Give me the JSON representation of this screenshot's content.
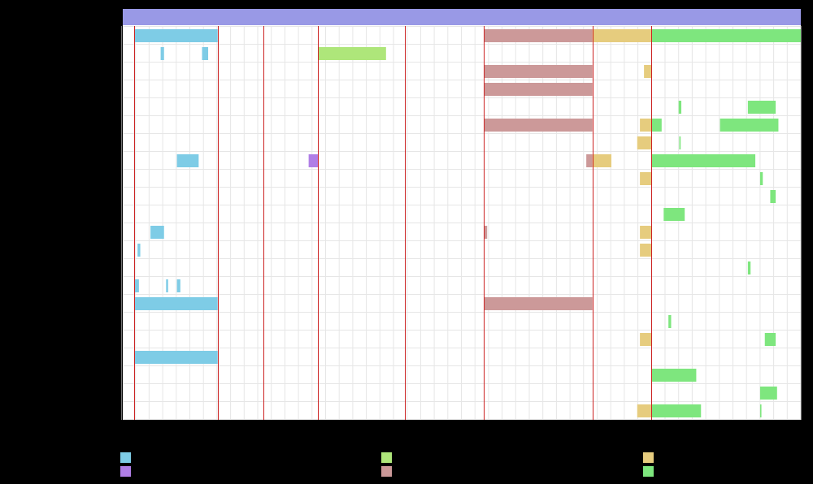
{
  "chart_data": {
    "type": "gantt",
    "title": "",
    "xlabel": "",
    "ylabel": "",
    "x_range": [
      0,
      100
    ],
    "grid": true,
    "legend_position": "bottom",
    "legend": [
      {
        "name": "",
        "color": "#7ecce6"
      },
      {
        "name": "",
        "color": "#aee67a"
      },
      {
        "name": "",
        "color": "#e6cc7e"
      },
      {
        "name": "",
        "color": "#b07ee6"
      },
      {
        "name": "",
        "color": "#cc9999"
      },
      {
        "name": "",
        "color": "#7ee67e"
      }
    ],
    "header_bar": {
      "start": 0,
      "end": 100,
      "color": "#9999e6"
    },
    "milestones": [
      1.8,
      14.1,
      20.8,
      28.9,
      41.7,
      53.3,
      69.3,
      78.0
    ],
    "rows": [
      [
        {
          "s": 1.8,
          "e": 14.1,
          "c": 0
        },
        {
          "s": 53.3,
          "e": 69.3,
          "c": 4
        },
        {
          "s": 69.3,
          "e": 78.0,
          "c": 2
        },
        {
          "s": 78.0,
          "e": 100.0,
          "c": 5
        }
      ],
      [
        {
          "s": 5.7,
          "e": 6.2,
          "c": 0
        },
        {
          "s": 11.8,
          "e": 12.7,
          "c": 0
        },
        {
          "s": 28.9,
          "e": 38.9,
          "c": 1
        }
      ],
      [
        {
          "s": 53.3,
          "e": 69.3,
          "c": 4
        },
        {
          "s": 76.9,
          "e": 78.0,
          "c": 2
        }
      ],
      [
        {
          "s": 53.3,
          "e": 69.3,
          "c": 4
        }
      ],
      [
        {
          "s": 82.0,
          "e": 82.4,
          "c": 5
        },
        {
          "s": 92.2,
          "e": 96.3,
          "c": 5
        }
      ],
      [
        {
          "s": 53.3,
          "e": 69.3,
          "c": 4
        },
        {
          "s": 76.3,
          "e": 78.0,
          "c": 2
        },
        {
          "s": 78.0,
          "e": 79.5,
          "c": 5
        },
        {
          "s": 88.1,
          "e": 96.7,
          "c": 5
        }
      ],
      [
        {
          "s": 75.9,
          "e": 78.0,
          "c": 2
        },
        {
          "s": 82.1,
          "e": 82.3,
          "c": 5
        }
      ],
      [
        {
          "s": 8.1,
          "e": 11.3,
          "c": 0
        },
        {
          "s": 27.5,
          "e": 28.9,
          "c": 3
        },
        {
          "s": 68.4,
          "e": 69.3,
          "c": 4
        },
        {
          "s": 69.3,
          "e": 72.1,
          "c": 2
        },
        {
          "s": 78.0,
          "e": 93.3,
          "c": 5
        }
      ],
      [
        {
          "s": 76.3,
          "e": 78.0,
          "c": 2
        },
        {
          "s": 94.0,
          "e": 94.4,
          "c": 5
        }
      ],
      [
        {
          "s": 95.5,
          "e": 96.3,
          "c": 5
        }
      ],
      [
        {
          "s": 79.8,
          "e": 82.9,
          "c": 5
        }
      ],
      [
        {
          "s": 4.2,
          "e": 6.2,
          "c": 0
        },
        {
          "s": 53.3,
          "e": 53.8,
          "c": 4
        },
        {
          "s": 76.3,
          "e": 78.0,
          "c": 2
        }
      ],
      [
        {
          "s": 2.3,
          "e": 2.7,
          "c": 0
        },
        {
          "s": 76.3,
          "e": 78.0,
          "c": 2
        }
      ],
      [
        {
          "s": 92.2,
          "e": 92.6,
          "c": 5
        }
      ],
      [
        {
          "s": 1.8,
          "e": 2.5,
          "c": 0
        },
        {
          "s": 6.5,
          "e": 6.8,
          "c": 0
        },
        {
          "s": 8.1,
          "e": 8.6,
          "c": 0
        }
      ],
      [
        {
          "s": 1.8,
          "e": 14.1,
          "c": 0
        },
        {
          "s": 53.3,
          "e": 69.3,
          "c": 4
        }
      ],
      [
        {
          "s": 80.5,
          "e": 80.9,
          "c": 5
        }
      ],
      [
        {
          "s": 76.3,
          "e": 78.0,
          "c": 2
        },
        {
          "s": 94.7,
          "e": 96.3,
          "c": 5
        }
      ],
      [
        {
          "s": 1.8,
          "e": 14.1,
          "c": 0
        }
      ],
      [
        {
          "s": 78.0,
          "e": 84.6,
          "c": 5
        }
      ],
      [
        {
          "s": 94.0,
          "e": 96.5,
          "c": 5
        }
      ],
      [
        {
          "s": 75.9,
          "e": 78.0,
          "c": 2
        },
        {
          "s": 78.0,
          "e": 85.3,
          "c": 5
        },
        {
          "s": 94.0,
          "e": 94.2,
          "c": 5
        }
      ]
    ]
  }
}
